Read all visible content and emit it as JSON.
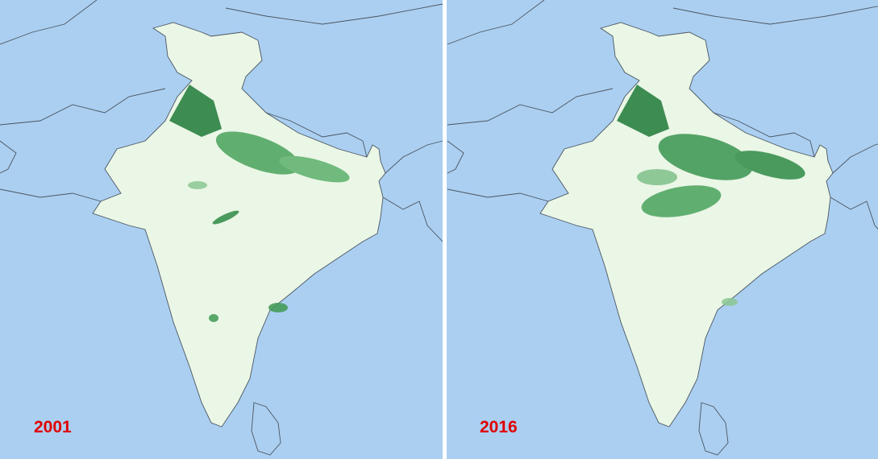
{
  "panels": [
    {
      "label": "2001"
    },
    {
      "label": "2016"
    }
  ]
}
